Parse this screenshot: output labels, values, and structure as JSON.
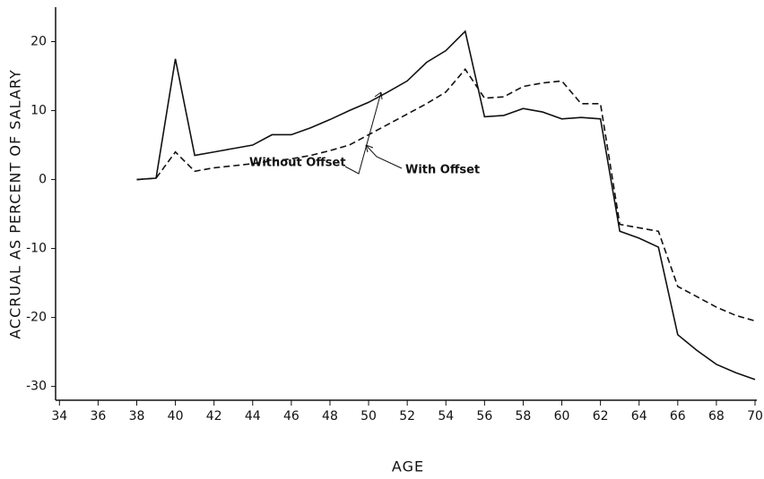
{
  "chart_data": {
    "type": "line",
    "x": [
      38,
      39,
      40,
      41,
      42,
      43,
      44,
      45,
      46,
      47,
      48,
      49,
      50,
      51,
      52,
      53,
      54,
      55,
      56,
      57,
      58,
      59,
      60,
      61,
      62,
      63,
      64,
      65,
      66,
      67,
      68,
      69,
      70
    ],
    "series": [
      {
        "name": "Without Offset",
        "color": "#111111",
        "dash": false,
        "values": [
          0,
          0.2,
          17.5,
          3.5,
          4,
          4.5,
          5,
          6.5,
          6.5,
          7.5,
          8.7,
          10,
          11.2,
          12.7,
          14.3,
          17,
          18.7,
          21.5,
          9.1,
          9.3,
          10.3,
          9.8,
          8.8,
          9,
          8.8,
          -7.5,
          -8.5,
          -9.8,
          -22.5,
          -24.8,
          -26.8,
          -28,
          -29
        ]
      },
      {
        "name": "With Offset",
        "color": "#111111",
        "dash": true,
        "values": [
          0,
          0.2,
          4,
          1.2,
          1.7,
          2,
          2.3,
          2.7,
          3,
          3.5,
          4.2,
          5,
          6.5,
          8,
          9.5,
          11,
          12.7,
          16,
          11.8,
          12,
          13.5,
          14,
          14.3,
          11,
          11,
          -6.5,
          -7,
          -7.5,
          -15.5,
          -17,
          -18.5,
          -19.7,
          -20.5
        ]
      }
    ],
    "xlabel": "AGE",
    "ylabel": "ACCRUAL AS PERCENT OF SALARY",
    "xlim": [
      33.8,
      70
    ],
    "ylim": [
      -32,
      25
    ],
    "xticks": [
      34,
      36,
      38,
      40,
      42,
      44,
      46,
      48,
      50,
      52,
      54,
      56,
      58,
      60,
      62,
      64,
      66,
      68,
      70
    ],
    "yticks": [
      -30,
      -20,
      -10,
      0,
      10,
      20
    ],
    "grid": false
  }
}
